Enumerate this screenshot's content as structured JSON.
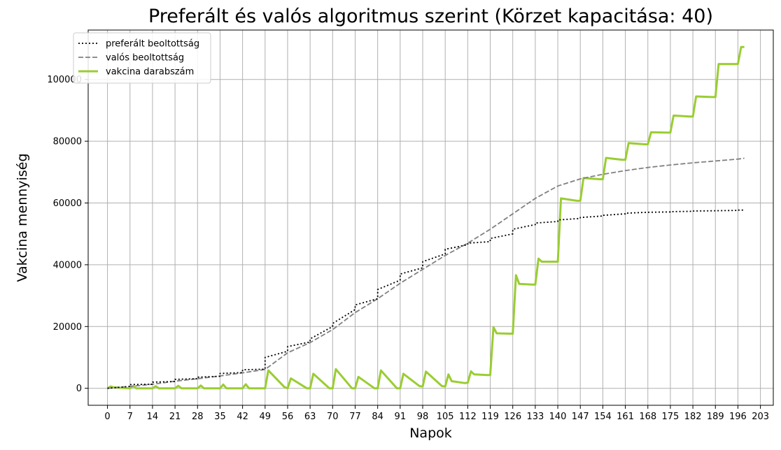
{
  "chart_data": {
    "type": "line",
    "title": "Preferált és valós algoritmus szerint (Körzet kapacitása: 40)",
    "xlabel": "Napok",
    "ylabel": "Vakcina mennyiség",
    "xlim": [
      -6,
      207
    ],
    "ylim": [
      -5500,
      116000
    ],
    "xticks": [
      0,
      7,
      14,
      21,
      28,
      35,
      42,
      49,
      56,
      63,
      70,
      77,
      84,
      91,
      98,
      105,
      112,
      119,
      126,
      133,
      140,
      147,
      154,
      161,
      168,
      175,
      182,
      189,
      196,
      203
    ],
    "yticks": [
      0,
      20000,
      40000,
      60000,
      80000,
      100000
    ],
    "grid": true,
    "legend": "top-left",
    "series": [
      {
        "name": "preferált beoltottság",
        "color": "#000000",
        "style": "dotted",
        "x": [
          0,
          7,
          7,
          14,
          14,
          21,
          21,
          28,
          28,
          35,
          35,
          42,
          42,
          49,
          49,
          56,
          56,
          63,
          63,
          70,
          70,
          77,
          77,
          84,
          84,
          91,
          91,
          98,
          98,
          105,
          105,
          112,
          112,
          119,
          119,
          126,
          126,
          133,
          133,
          140,
          140,
          147,
          147,
          154,
          154,
          161,
          161,
          168,
          168,
          175,
          175,
          182,
          182,
          189,
          189,
          196,
          196,
          198
        ],
        "y": [
          0,
          600,
          1200,
          1300,
          2000,
          2200,
          2900,
          3100,
          3600,
          3900,
          4800,
          5100,
          6000,
          6200,
          10000,
          12000,
          13500,
          15000,
          16000,
          20000,
          21000,
          25500,
          27000,
          29000,
          32000,
          35000,
          37000,
          39000,
          41000,
          43500,
          45000,
          46500,
          47000,
          47500,
          48500,
          50000,
          51500,
          53000,
          53500,
          54000,
          54500,
          55000,
          55300,
          55800,
          56000,
          56500,
          56700,
          57000,
          57000,
          57100,
          57200,
          57300,
          57400,
          57500,
          57500,
          57600,
          57700,
          57700
        ]
      },
      {
        "name": "valós beoltottság",
        "color": "#808080",
        "style": "dashed",
        "x": [
          0,
          7,
          14,
          21,
          28,
          35,
          42,
          49,
          56,
          63,
          70,
          77,
          84,
          91,
          98,
          105,
          112,
          119,
          126,
          133,
          140,
          147,
          154,
          161,
          168,
          175,
          182,
          189,
          196,
          198
        ],
        "y": [
          0,
          600,
          1300,
          2300,
          3100,
          4000,
          5000,
          6100,
          11500,
          14800,
          19000,
          24500,
          29000,
          34000,
          38500,
          43000,
          47000,
          51500,
          56500,
          61500,
          65500,
          67800,
          69300,
          70500,
          71500,
          72300,
          73000,
          73600,
          74200,
          74500
        ]
      },
      {
        "name": "vakcina darabszám",
        "color": "#9acd32",
        "style": "solid",
        "x": [
          0,
          1,
          2,
          7,
          8,
          9,
          14,
          15,
          16,
          21,
          22,
          23,
          28,
          29,
          30,
          35,
          36,
          37,
          42,
          43,
          44,
          49,
          50,
          55,
          56,
          57,
          62,
          63,
          64,
          69,
          70,
          71,
          76,
          77,
          78,
          83,
          84,
          85,
          90,
          91,
          92,
          97,
          98,
          99,
          104,
          105,
          106,
          107,
          111,
          112,
          113,
          114,
          118,
          119,
          120,
          121,
          125,
          126,
          127,
          128,
          132,
          133,
          134,
          135,
          139,
          140,
          141,
          146,
          147,
          148,
          153,
          154,
          155,
          160,
          161,
          162,
          167,
          168,
          169,
          174,
          175,
          176,
          181,
          182,
          183,
          188,
          189,
          190,
          195,
          196,
          197,
          198
        ],
        "y": [
          0,
          600,
          300,
          0,
          700,
          0,
          0,
          700,
          0,
          0,
          800,
          0,
          0,
          900,
          0,
          0,
          1200,
          0,
          0,
          1300,
          0,
          0,
          5800,
          400,
          0,
          3200,
          0,
          0,
          4700,
          0,
          0,
          6200,
          0,
          0,
          3700,
          0,
          0,
          5800,
          0,
          0,
          4700,
          700,
          600,
          5400,
          700,
          600,
          4500,
          2300,
          1700,
          1800,
          5500,
          4500,
          4300,
          4300,
          19800,
          17800,
          17700,
          17700,
          36600,
          33800,
          33600,
          33600,
          42000,
          41000,
          41000,
          41000,
          61500,
          60700,
          60700,
          68100,
          67700,
          67700,
          74600,
          74000,
          74000,
          79400,
          79000,
          79000,
          82900,
          82800,
          82800,
          88300,
          88000,
          88000,
          94500,
          94300,
          94300,
          105000,
          105000,
          105000,
          110500,
          110500
        ]
      }
    ]
  }
}
